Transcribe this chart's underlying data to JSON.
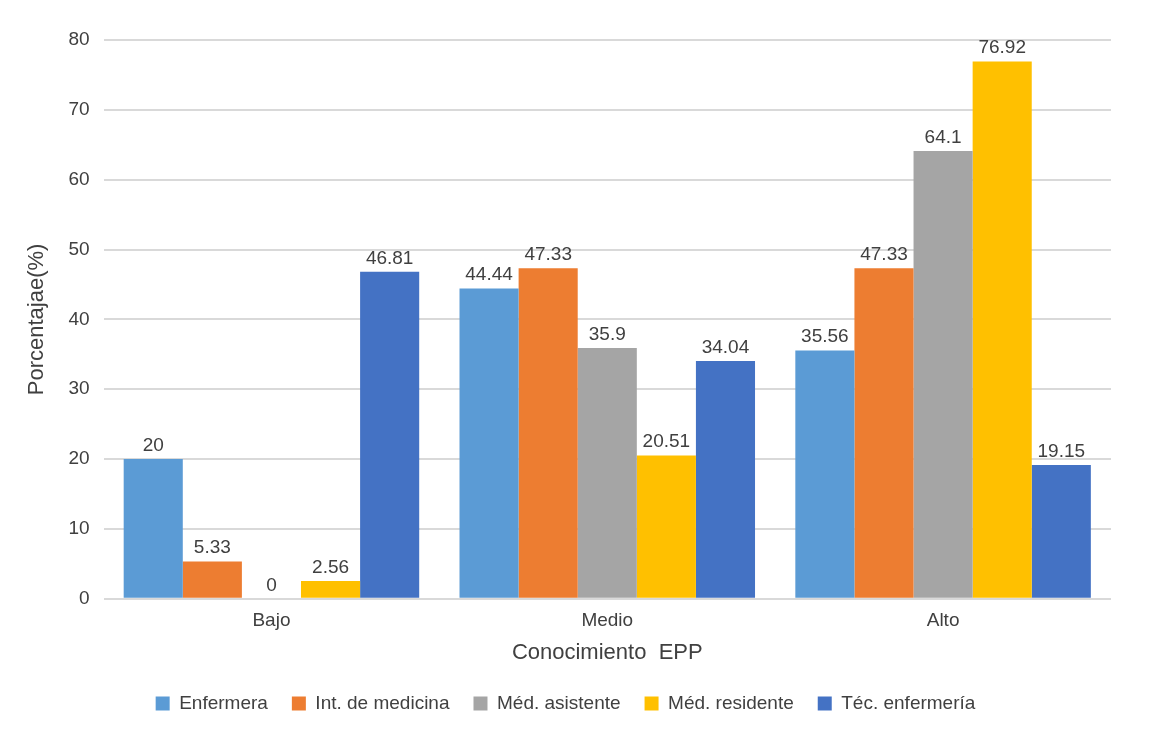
{
  "chart_data": {
    "type": "bar",
    "xlabel": "Conocimiento  EPP",
    "ylabel": "Porcentajae(%)",
    "categories": [
      "Bajo",
      "Medio",
      "Alto"
    ],
    "series": [
      {
        "name": "Enfermera",
        "color": "#5b9bd5",
        "values": [
          20,
          44.44,
          35.56
        ]
      },
      {
        "name": "Int. de medicina",
        "color": "#ed7d31",
        "values": [
          5.33,
          47.33,
          47.33
        ]
      },
      {
        "name": "Méd. asistente",
        "color": "#a5a5a5",
        "values": [
          0,
          35.9,
          64.1
        ]
      },
      {
        "name": "Méd. residente",
        "color": "#ffc000",
        "values": [
          2.56,
          20.51,
          76.92
        ]
      },
      {
        "name": "Téc. enfermería",
        "color": "#4472c4",
        "values": [
          46.81,
          34.04,
          19.15
        ]
      }
    ],
    "ylim": [
      0,
      80
    ],
    "yticks": [
      0,
      10,
      20,
      30,
      40,
      50,
      60,
      70,
      80
    ],
    "grid": "y",
    "legend": "bottom",
    "data_labels": true
  }
}
